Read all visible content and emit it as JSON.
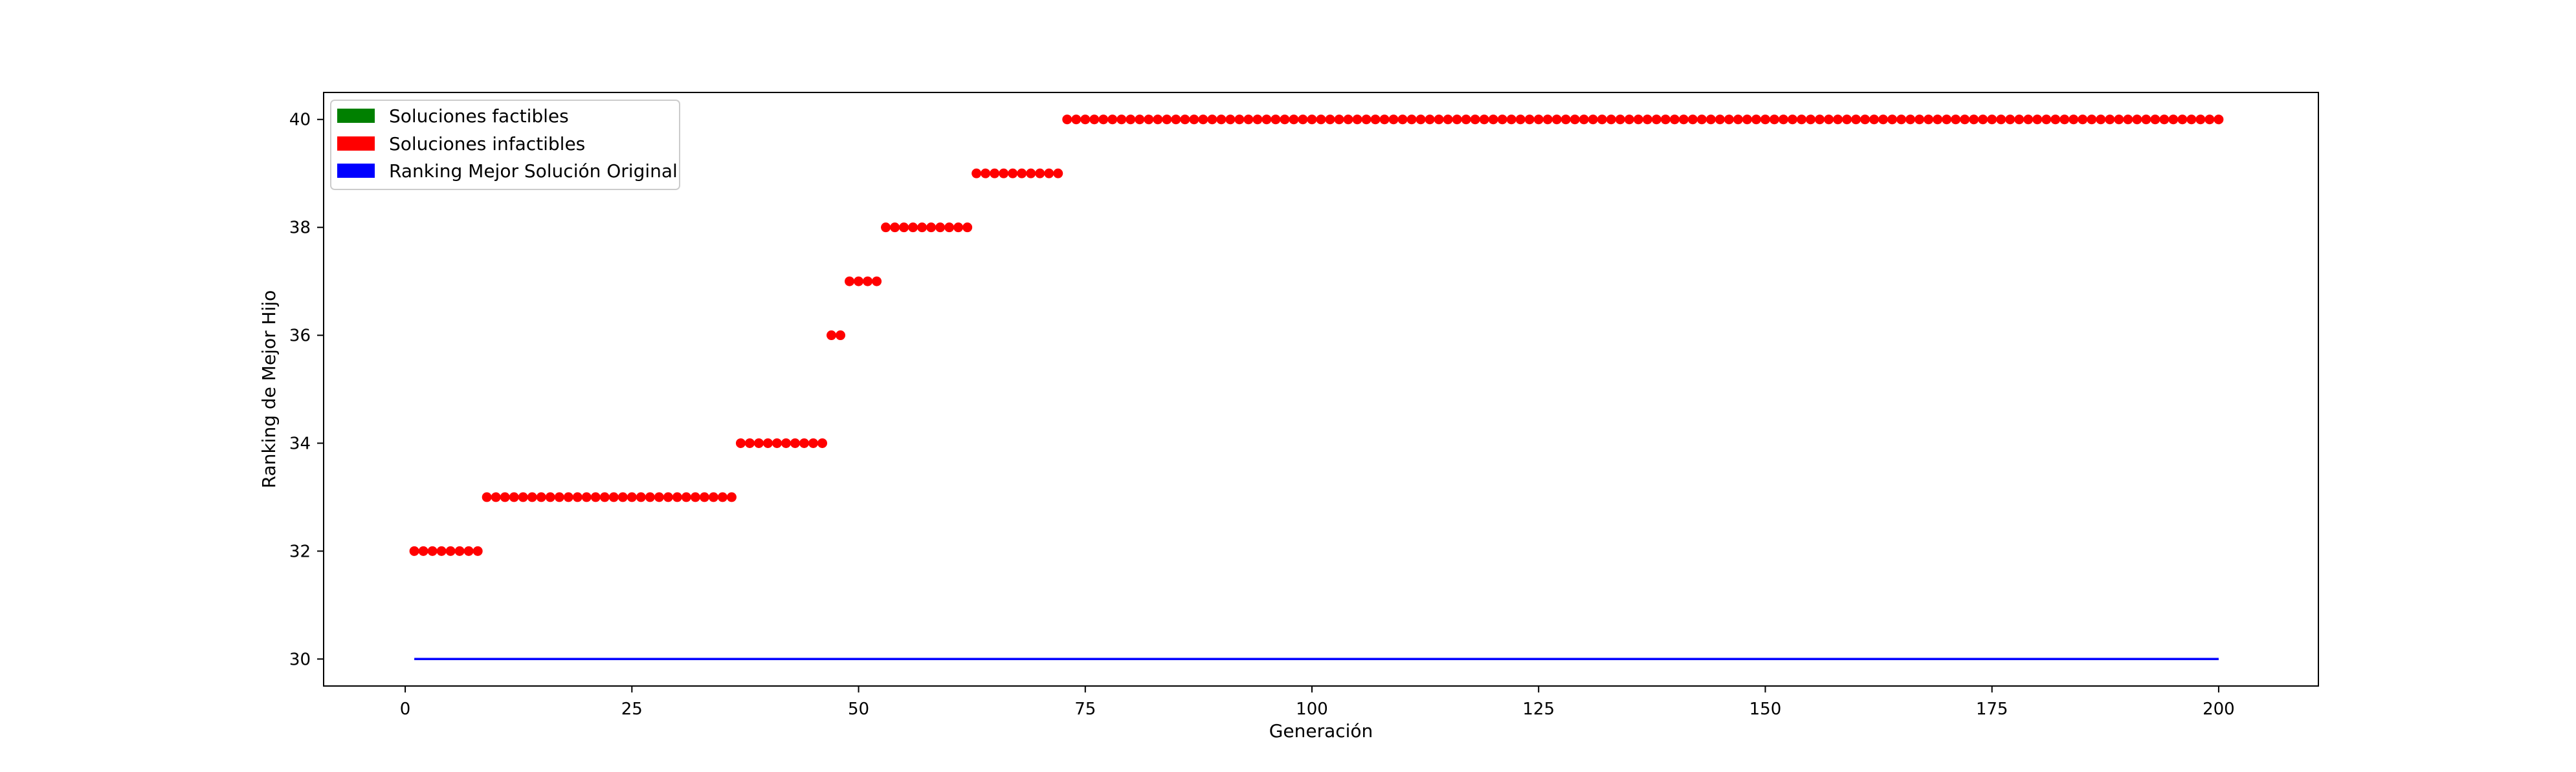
{
  "chart_data": {
    "type": "scatter",
    "title": "",
    "xlabel": "Generación",
    "ylabel": "Ranking de Mejor Hijo",
    "xlim": [
      -9,
      211
    ],
    "ylim": [
      29.5,
      40.5
    ],
    "xticks": [
      "0",
      "25",
      "50",
      "75",
      "100",
      "125",
      "150",
      "175",
      "200"
    ],
    "yticks": [
      "30",
      "32",
      "34",
      "36",
      "38",
      "40"
    ],
    "grid": false,
    "legend_position": "top-left",
    "legend": [
      {
        "label": "Soluciones factibles",
        "color": "#008000"
      },
      {
        "label": "Soluciones infactibles",
        "color": "#ff0000"
      },
      {
        "label": "Ranking Mejor Solución Original",
        "color": "#0000ff"
      }
    ],
    "series": [
      {
        "name": "Soluciones infactibles",
        "color": "#ff0000",
        "style": "points",
        "segments": [
          {
            "x_from": 1,
            "x_to": 8,
            "y": 32
          },
          {
            "x_from": 9,
            "x_to": 36,
            "y": 33
          },
          {
            "x_from": 37,
            "x_to": 46,
            "y": 34
          },
          {
            "x_from": 47,
            "x_to": 48,
            "y": 36
          },
          {
            "x_from": 49,
            "x_to": 52,
            "y": 37
          },
          {
            "x_from": 53,
            "x_to": 62,
            "y": 38
          },
          {
            "x_from": 63,
            "x_to": 72,
            "y": 39
          },
          {
            "x_from": 73,
            "x_to": 200,
            "y": 40
          }
        ]
      },
      {
        "name": "Ranking Mejor Solución Original",
        "color": "#0000ff",
        "style": "line",
        "x": [
          1,
          200
        ],
        "y": [
          30,
          30
        ]
      }
    ]
  }
}
